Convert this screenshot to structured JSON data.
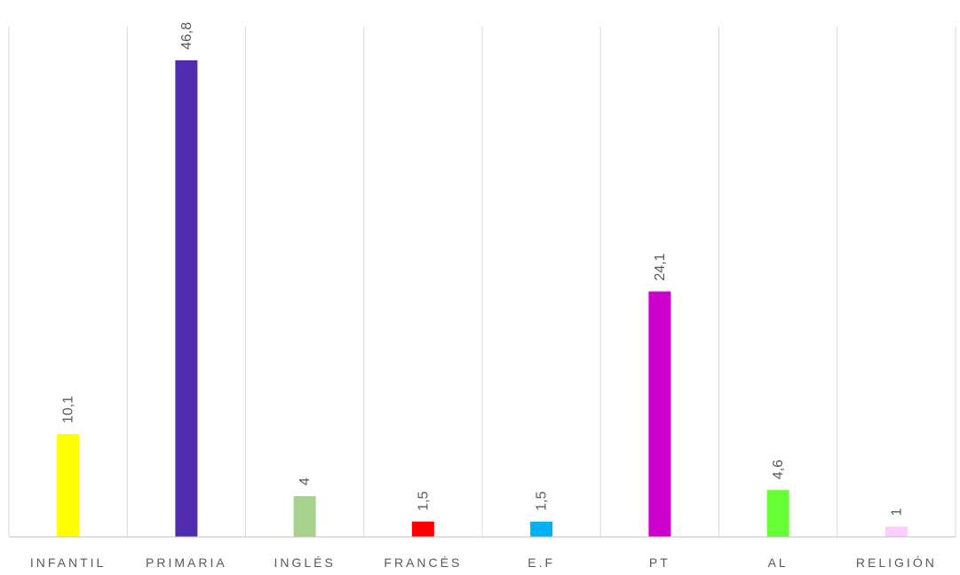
{
  "chart_data": {
    "type": "bar",
    "title": "",
    "xlabel": "",
    "ylabel": "",
    "categories": [
      "INFANTIL",
      "PRIMARIA",
      "INGLÉS",
      "FRANCÉS",
      "E.F",
      "PT",
      "AL",
      "RELIGIÓN"
    ],
    "values": [
      10.1,
      46.8,
      4,
      1.5,
      1.5,
      24.1,
      4.6,
      1
    ],
    "data_labels": [
      "10,1",
      "46,8",
      "4",
      "1,5",
      "1,5",
      "24,1",
      "4,6",
      "1"
    ],
    "colors": [
      "#ffff00",
      "#4f2bb0",
      "#a9d18e",
      "#ff0000",
      "#00b0f0",
      "#cc00cc",
      "#66ff33",
      "#ffccff"
    ],
    "ylim": [
      0,
      47
    ],
    "grid": true,
    "legend": "none"
  }
}
